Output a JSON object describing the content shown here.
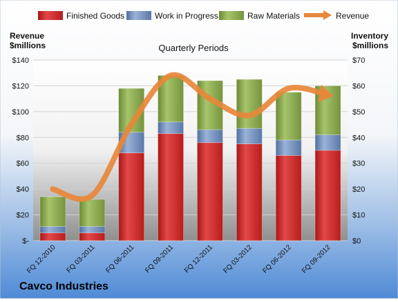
{
  "chart_data": {
    "type": "bar",
    "subtitle": "Quarterly Periods",
    "company": "Cavco Industries",
    "left_axis_label": [
      "Revenue",
      "$millions"
    ],
    "right_axis_label": [
      "Inventory",
      "$millions"
    ],
    "categories": [
      "FQ 12-2010",
      "FQ 03-2011",
      "FQ 06-2011",
      "FQ 09-2011",
      "FQ 12-2011",
      "FQ 03-2012",
      "FQ 06-2012",
      "FQ 09-2012"
    ],
    "left_axis": {
      "min": 0,
      "max": 140,
      "step": 20,
      "ticks": [
        "$-",
        "$20",
        "$40",
        "$60",
        "$80",
        "$100",
        "$120",
        "$140"
      ]
    },
    "right_axis": {
      "min": 0,
      "max": 70,
      "step": 10,
      "ticks": [
        "$0",
        "$10",
        "$20",
        "$30",
        "$40",
        "$50",
        "$60",
        "$70"
      ]
    },
    "series": [
      {
        "name": "Finished Goods",
        "axis": "right",
        "kind": "bar",
        "color": "#d42b2b",
        "values": [
          3,
          3,
          34,
          41.5,
          38,
          37.5,
          33,
          35
        ]
      },
      {
        "name": "Work in Progress",
        "axis": "right",
        "kind": "bar",
        "color": "#6f8fc0",
        "values": [
          2.5,
          2.5,
          8,
          4.5,
          5,
          6,
          6,
          6
        ]
      },
      {
        "name": "Raw Materials",
        "axis": "right",
        "kind": "bar",
        "color": "#8aad4e",
        "values": [
          11.5,
          10.5,
          17,
          18,
          19,
          19,
          18.5,
          19
        ]
      },
      {
        "name": "Revenue",
        "axis": "left",
        "kind": "line",
        "color": "#e8873a",
        "values": [
          40,
          35,
          90,
          128,
          110,
          97,
          118,
          113
        ]
      }
    ],
    "legend_position": "top",
    "grid": true
  }
}
